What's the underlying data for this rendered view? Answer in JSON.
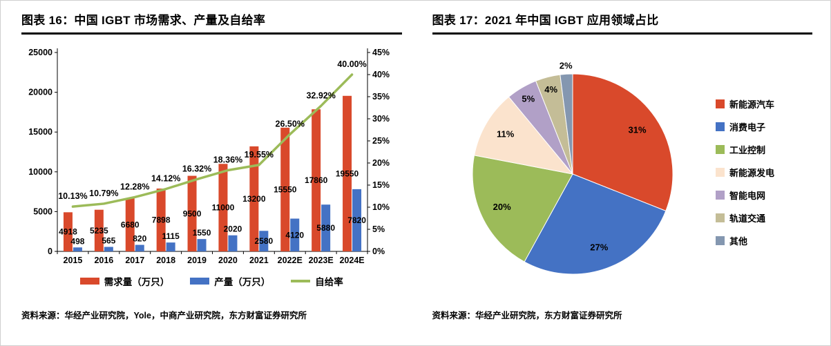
{
  "panels": {
    "left": {
      "source": "资料来源：华经产业研究院，Yole，中商产业研究院，东方财富证券研究所"
    },
    "right": {
      "source": "资料来源：华经产业研究院，东方财富证券研究所"
    }
  },
  "chart_data": [
    {
      "type": "bar+line",
      "title": "图表 16：中国 IGBT 市场需求、产量及自给率",
      "categories": [
        "2015",
        "2016",
        "2017",
        "2018",
        "2019",
        "2020",
        "2021",
        "2022E",
        "2023E",
        "2024E"
      ],
      "series": [
        {
          "name": "需求量（万只）",
          "type": "bar",
          "axis": "left",
          "color": "#D9492B",
          "values": [
            4918,
            5235,
            6680,
            7898,
            9500,
            11000,
            13200,
            15550,
            17860,
            19550
          ]
        },
        {
          "name": "产量（万只）",
          "type": "bar",
          "axis": "left",
          "color": "#4472C4",
          "values": [
            498,
            565,
            820,
            1115,
            1550,
            2020,
            2580,
            4120,
            5880,
            7820
          ]
        },
        {
          "name": "自给率",
          "type": "line",
          "axis": "right",
          "color": "#9CBB59",
          "values": [
            10.13,
            10.79,
            12.28,
            14.12,
            16.32,
            18.36,
            19.55,
            26.5,
            32.92,
            40.0
          ],
          "labels": [
            "10.13%",
            "10.79%",
            "12.28%",
            "14.12%",
            "16.32%",
            "18.36%",
            "19.55%",
            "26.50%",
            "32.92%",
            "40.00%"
          ]
        }
      ],
      "left_axis": {
        "min": 0,
        "max": 25000,
        "step": 5000
      },
      "right_axis": {
        "min": 0,
        "max": 45,
        "step": 5,
        "suffix": "%"
      },
      "grid": false,
      "legend_position": "bottom"
    },
    {
      "type": "pie",
      "title": "图表 17：2021 年中国 IGBT 应用领域占比",
      "slices": [
        {
          "label": "新能源汽车",
          "value": 31,
          "pct": "31%",
          "color": "#D9492B"
        },
        {
          "label": "消费电子",
          "value": 27,
          "pct": "27%",
          "color": "#4472C4"
        },
        {
          "label": "工业控制",
          "value": 20,
          "pct": "20%",
          "color": "#9CBB59"
        },
        {
          "label": "新能源发电",
          "value": 11,
          "pct": "11%",
          "color": "#FBE3CD"
        },
        {
          "label": "智能电网",
          "value": 5,
          "pct": "5%",
          "color": "#B1A0C7"
        },
        {
          "label": "轨道交通",
          "value": 4,
          "pct": "4%",
          "color": "#C4BD97"
        },
        {
          "label": "其他",
          "value": 2,
          "pct": "2%",
          "color": "#8497B0"
        }
      ],
      "legend_position": "right"
    }
  ]
}
